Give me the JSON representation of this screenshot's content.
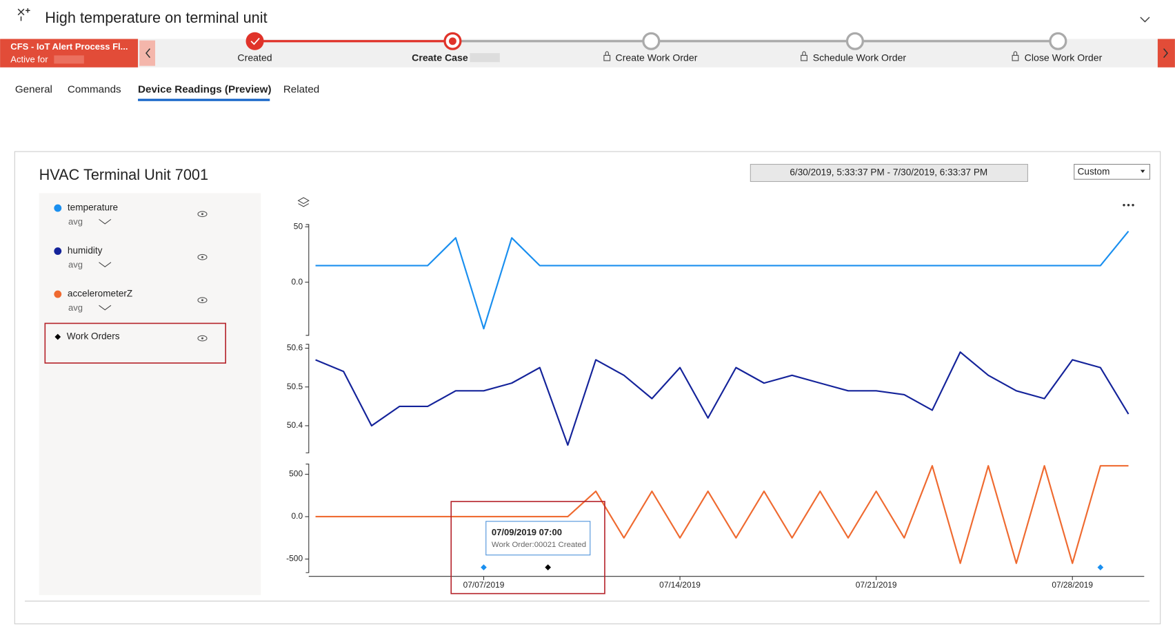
{
  "header": {
    "title": "High temperature on terminal unit"
  },
  "process": {
    "name": "CFS - IoT Alert Process Fl...",
    "status": "Active for",
    "stages": [
      "Created",
      "Create Case",
      "Create Work Order",
      "Schedule Work Order",
      "Close Work Order"
    ]
  },
  "tabs": [
    "General",
    "Commands",
    "Device Readings (Preview)",
    "Related"
  ],
  "card": {
    "title": "HVAC Terminal Unit 7001",
    "date_range": "6/30/2019, 5:33:37 PM - 7/30/2019, 6:33:37 PM",
    "range_mode": "Custom"
  },
  "chart_data": [
    {
      "type": "line",
      "aggregation": "avg",
      "x": [
        "07/01/2019",
        "07/02/2019",
        "07/03/2019",
        "07/04/2019",
        "07/05/2019",
        "07/06/2019",
        "07/07/2019",
        "07/08/2019",
        "07/09/2019",
        "07/10/2019",
        "07/11/2019",
        "07/12/2019",
        "07/13/2019",
        "07/14/2019",
        "07/15/2019",
        "07/16/2019",
        "07/17/2019",
        "07/18/2019",
        "07/19/2019",
        "07/20/2019",
        "07/21/2019",
        "07/22/2019",
        "07/23/2019",
        "07/24/2019",
        "07/25/2019",
        "07/26/2019",
        "07/27/2019",
        "07/28/2019",
        "07/29/2019",
        "07/30/2019"
      ],
      "xlim": [
        "07/01/2019",
        "07/30/2019"
      ],
      "ylim": [
        -48,
        52
      ],
      "yticks": [
        50,
        {
          "value": 0,
          "label": "0.0"
        }
      ],
      "series": [
        {
          "name": "temperature",
          "color": "#1a8fef",
          "values": [
            15,
            15,
            15,
            15,
            15,
            40,
            -42,
            40,
            15,
            15,
            15,
            15,
            15,
            15,
            15,
            15,
            15,
            15,
            15,
            15,
            15,
            15,
            15,
            15,
            15,
            15,
            15,
            15,
            15,
            46
          ]
        }
      ]
    },
    {
      "type": "line",
      "aggregation": "avg",
      "x": [
        "07/01/2019",
        "07/02/2019",
        "07/03/2019",
        "07/04/2019",
        "07/05/2019",
        "07/06/2019",
        "07/07/2019",
        "07/08/2019",
        "07/09/2019",
        "07/10/2019",
        "07/11/2019",
        "07/12/2019",
        "07/13/2019",
        "07/14/2019",
        "07/15/2019",
        "07/16/2019",
        "07/17/2019",
        "07/18/2019",
        "07/19/2019",
        "07/20/2019",
        "07/21/2019",
        "07/22/2019",
        "07/23/2019",
        "07/24/2019",
        "07/25/2019",
        "07/26/2019",
        "07/27/2019",
        "07/28/2019",
        "07/29/2019",
        "07/30/2019"
      ],
      "xlim": [
        "07/01/2019",
        "07/30/2019"
      ],
      "ylim": [
        50.33,
        50.61
      ],
      "yticks": [
        50.6,
        50.5,
        50.4
      ],
      "series": [
        {
          "name": "humidity",
          "color": "#14239a",
          "values": [
            50.57,
            50.54,
            50.4,
            50.45,
            50.45,
            50.49,
            50.49,
            50.51,
            50.55,
            50.35,
            50.57,
            50.53,
            50.47,
            50.55,
            50.42,
            50.55,
            50.51,
            50.53,
            50.51,
            50.49,
            50.49,
            50.48,
            50.44,
            50.59,
            50.53,
            50.49,
            50.47,
            50.57,
            50.55,
            50.43
          ]
        }
      ]
    },
    {
      "type": "line",
      "aggregation": "avg",
      "x": [
        "07/01/2019",
        "07/02/2019",
        "07/03/2019",
        "07/04/2019",
        "07/05/2019",
        "07/06/2019",
        "07/07/2019",
        "07/08/2019",
        "07/09/2019",
        "07/10/2019",
        "07/11/2019",
        "07/12/2019",
        "07/13/2019",
        "07/14/2019",
        "07/15/2019",
        "07/16/2019",
        "07/17/2019",
        "07/18/2019",
        "07/19/2019",
        "07/20/2019",
        "07/21/2019",
        "07/22/2019",
        "07/23/2019",
        "07/24/2019",
        "07/25/2019",
        "07/26/2019",
        "07/27/2019",
        "07/28/2019",
        "07/29/2019",
        "07/30/2019"
      ],
      "xlim": [
        "07/01/2019",
        "07/30/2019"
      ],
      "xticks": [
        "07/07/2019",
        "07/14/2019",
        "07/21/2019",
        "07/28/2019"
      ],
      "ylim": [
        -660,
        620
      ],
      "yticks": [
        500,
        {
          "value": 0,
          "label": "0.0"
        },
        -500
      ],
      "series": [
        {
          "name": "accelerometerZ",
          "color": "#ef6a30",
          "values": [
            0,
            0,
            0,
            0,
            0,
            0,
            0,
            0,
            0,
            0,
            300,
            -250,
            300,
            -250,
            300,
            -250,
            300,
            -250,
            300,
            -250,
            300,
            -250,
            600,
            -550,
            600,
            -550,
            600,
            -550,
            600,
            600
          ]
        }
      ],
      "events": {
        "name": "Work Orders",
        "x": [
          "07/07/2019",
          "07/09/2019 07:00",
          "07/29/2019"
        ],
        "colors": [
          "#1a8fef",
          "#000000",
          "#1a8fef"
        ],
        "tooltip": {
          "title": "07/09/2019 07:00",
          "text": "Work Order:00021 Created"
        }
      }
    }
  ]
}
